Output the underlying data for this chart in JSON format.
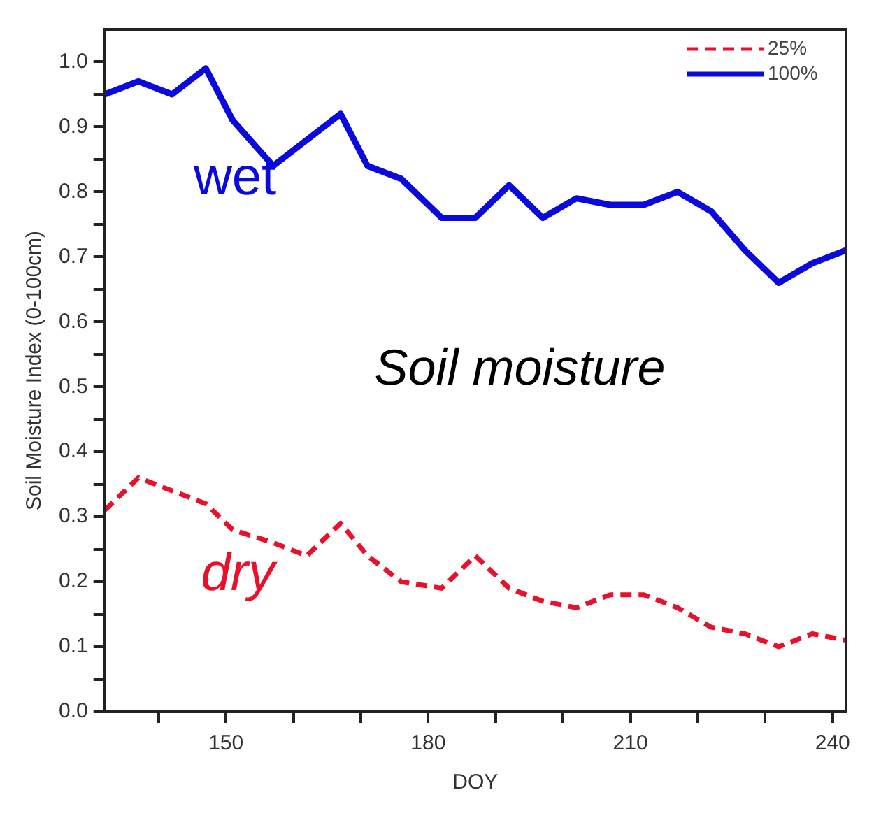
{
  "chart_data": {
    "type": "line",
    "xlabel": "DOY",
    "ylabel": "Soil Moisture Index (0-100cm)",
    "annotations": [
      "Soil moisture",
      "wet",
      "dry"
    ],
    "x": [
      132,
      137,
      142,
      147,
      151,
      157,
      162,
      167,
      171,
      176,
      182,
      187,
      192,
      197,
      202,
      207,
      212,
      217,
      222,
      227,
      232,
      237,
      242
    ],
    "series": [
      {
        "name": "25%",
        "color": "#e8102a",
        "line_style": "dashed",
        "values": [
          0.31,
          0.36,
          0.34,
          0.32,
          0.28,
          0.26,
          0.24,
          0.29,
          0.24,
          0.2,
          0.19,
          0.24,
          0.19,
          0.17,
          0.16,
          0.18,
          0.18,
          0.16,
          0.13,
          0.12,
          0.1,
          0.12,
          0.11
        ]
      },
      {
        "name": "100%",
        "color": "#0a0adc",
        "line_style": "solid",
        "values": [
          0.95,
          0.97,
          0.95,
          0.99,
          0.91,
          0.84,
          0.88,
          0.92,
          0.84,
          0.82,
          0.76,
          0.76,
          0.81,
          0.76,
          0.79,
          0.78,
          0.78,
          0.8,
          0.77,
          0.71,
          0.66,
          0.69,
          0.71
        ]
      }
    ],
    "xlim": [
      132,
      242
    ],
    "xticks": [
      {
        "value": 140,
        "label": null
      },
      150,
      {
        "value": 160,
        "label": null
      },
      {
        "value": 170,
        "label": null
      },
      180,
      {
        "value": 190,
        "label": null
      },
      {
        "value": 200,
        "label": null
      },
      210,
      {
        "value": 220,
        "label": null
      },
      {
        "value": 230,
        "label": null
      },
      240
    ],
    "ylim": [
      0,
      1.05
    ],
    "yticks": [
      {
        "value": 0,
        "label": "0.0"
      },
      {
        "value": 0.05,
        "label": null
      },
      0.1,
      {
        "value": 0.15,
        "label": null
      },
      0.2,
      {
        "value": 0.25,
        "label": null
      },
      0.3,
      {
        "value": 0.35,
        "label": null
      },
      0.4,
      {
        "value": 0.45,
        "label": null
      },
      0.5,
      {
        "value": 0.55,
        "label": null
      },
      0.6,
      {
        "value": 0.65,
        "label": null
      },
      0.7,
      {
        "value": 0.75,
        "label": null
      },
      0.8,
      {
        "value": 0.85,
        "label": null
      },
      0.9,
      {
        "value": 0.95,
        "label": null
      },
      {
        "value": 1,
        "label": "1.0"
      }
    ],
    "grid": false,
    "legend": "top right",
    "marker": "none"
  }
}
